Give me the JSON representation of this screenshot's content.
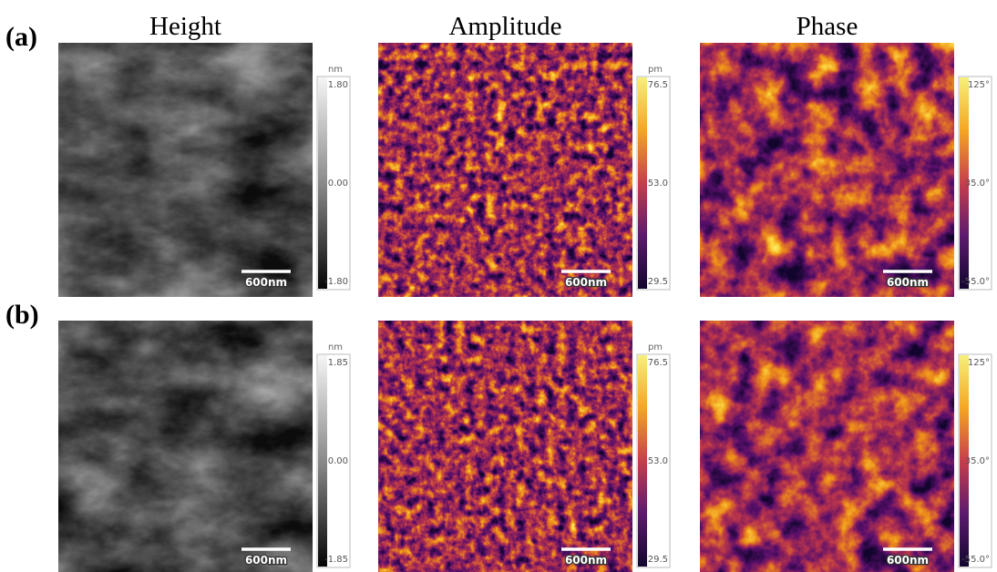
{
  "row_labels": [
    "(a)",
    "(b)"
  ],
  "column_titles": [
    "Height",
    "Amplitude",
    "Phase"
  ],
  "rows": [
    {
      "panels": [
        {
          "unit": "nm",
          "ticks": [
            "1.80",
            "0.00",
            "-1.80"
          ],
          "scale_bar": "600nm"
        },
        {
          "unit": "pm",
          "ticks": [
            "76.5",
            "53.0",
            "29.5"
          ],
          "scale_bar": "600nm"
        },
        {
          "ticks": [
            "125°",
            "35.0°",
            "-55.0°"
          ],
          "scale_bar": "600nm"
        }
      ]
    },
    {
      "panels": [
        {
          "unit": "nm",
          "ticks": [
            "1.85",
            "0.00",
            "-1.85"
          ],
          "scale_bar": "600nm"
        },
        {
          "unit": "pm",
          "ticks": [
            "76.5",
            "53.0",
            "29.5"
          ],
          "scale_bar": "600nm"
        },
        {
          "ticks": [
            "125°",
            "35.0°",
            "-55.0°"
          ],
          "scale_bar": "600nm"
        }
      ]
    }
  ]
}
